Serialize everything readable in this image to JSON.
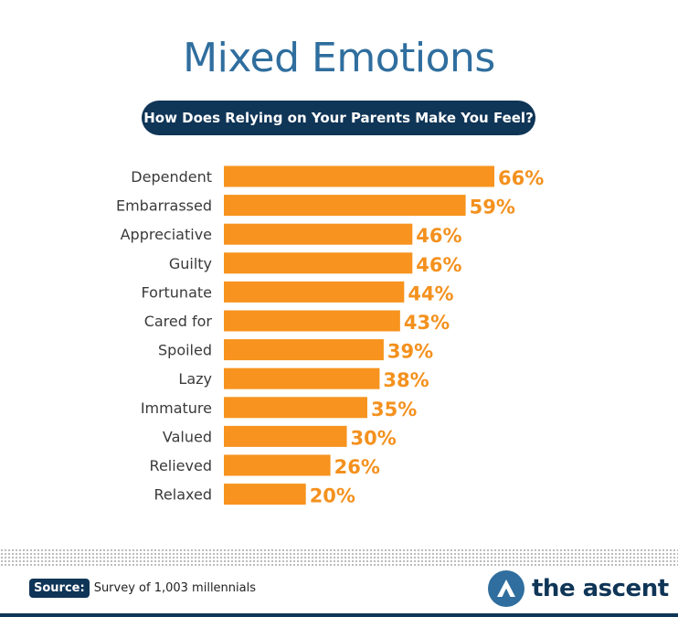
{
  "header": {
    "title": "Mixed Emotions",
    "subtitle": "How Does Relying on Your Parents Make You Feel?"
  },
  "chart_data": {
    "type": "bar",
    "orientation": "horizontal",
    "title": "Mixed Emotions",
    "subtitle": "How Does Relying on Your Parents Make You Feel?",
    "categories": [
      "Dependent",
      "Embarrassed",
      "Appreciative",
      "Guilty",
      "Fortunate",
      "Cared for",
      "Spoiled",
      "Lazy",
      "Immature",
      "Valued",
      "Relieved",
      "Relaxed"
    ],
    "values": [
      66,
      59,
      46,
      46,
      44,
      43,
      39,
      38,
      35,
      30,
      26,
      20
    ],
    "value_labels": [
      "66%",
      "59%",
      "46%",
      "46%",
      "44%",
      "43%",
      "39%",
      "38%",
      "35%",
      "30%",
      "26%",
      "20%"
    ],
    "unit": "%",
    "bar_color": "#f7931e",
    "label_color": "#f4911e",
    "grid": false,
    "legend": "none"
  },
  "footer": {
    "source_label": "Source:",
    "source_text": "Survey of 1,003 millennials",
    "brand": "the ascent"
  },
  "colors": {
    "title": "#2f6e9e",
    "navy": "#0f3557",
    "bar": "#f7931e"
  }
}
